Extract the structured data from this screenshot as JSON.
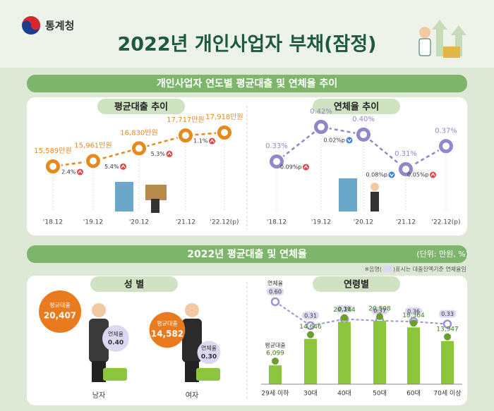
{
  "header": {
    "agency": "통계청",
    "title": "2022년 개인사업자 부채(잠정)"
  },
  "section1": {
    "title": "개인사업자 연도별 평균대출 및 연체율 추이"
  },
  "section2": {
    "title": "2022년 평균대출 및 연체율",
    "unit": "(단위: 만원, %)",
    "note_parts": [
      "※음영(",
      ")표시는 대출잔액기준 연체율임"
    ]
  },
  "chart_data": [
    {
      "type": "line",
      "title": "평균대출 추이",
      "color": "#e8891c",
      "categories": [
        "'18.12",
        "'19.12",
        "'20.12",
        "'21.12",
        "'22.12(p)"
      ],
      "values": [
        15589,
        15961,
        16830,
        17717,
        17918
      ],
      "value_labels": [
        "15,589만원",
        "15,961만원",
        "16,830만원",
        "17,717만원",
        "17,918만원"
      ],
      "change_labels": [
        "2.4%",
        "5.4%",
        "5.3%",
        "1.1%"
      ],
      "change_directions": [
        "up",
        "up",
        "up",
        "up"
      ]
    },
    {
      "type": "line",
      "title": "연체율 추이",
      "color": "#9088c9",
      "categories": [
        "'18.12",
        "'19.12",
        "'20.12",
        "'21.12",
        "'22.12(p)"
      ],
      "values": [
        0.33,
        0.42,
        0.4,
        0.31,
        0.37
      ],
      "value_labels": [
        "0.33%",
        "0.42%",
        "0.40%",
        "0.31%",
        "0.37%"
      ],
      "change_labels": [
        "0.09%p",
        "0.02%p",
        "0.08%p",
        "0.05%p"
      ],
      "change_directions": [
        "up",
        "down",
        "down",
        "up"
      ]
    },
    {
      "type": "bubble",
      "title": "성 별",
      "categories": [
        "남자",
        "여자"
      ],
      "series": [
        {
          "name": "평균대출",
          "color": "#ea7a1e",
          "values": [
            20407,
            14582
          ],
          "value_labels": [
            "20,407",
            "14,582"
          ]
        },
        {
          "name": "연체율",
          "color": "#dcd8f1",
          "values": [
            0.4,
            0.3
          ],
          "value_labels": [
            "0.40",
            "0.30"
          ]
        }
      ]
    },
    {
      "type": "bar_line",
      "title": "연령별",
      "categories": [
        "29세 이하",
        "30대",
        "40대",
        "50대",
        "60대",
        "70세 이상"
      ],
      "series": [
        {
          "name": "평균대출",
          "color": "#8cc63f",
          "values": [
            6099,
            14646,
            20144,
            20508,
            18364,
            13947
          ],
          "value_labels": [
            "6,099",
            "14,646",
            "20,144",
            "20,508",
            "18,364",
            "13,947"
          ]
        },
        {
          "name": "연체율",
          "color": "#9b94d0",
          "values": [
            0.6,
            0.31,
            0.39,
            0.37,
            0.36,
            0.33
          ],
          "value_labels": [
            "0.60",
            "0.31",
            "0.39",
            "0.37",
            "0.36",
            "0.33"
          ]
        }
      ]
    }
  ]
}
